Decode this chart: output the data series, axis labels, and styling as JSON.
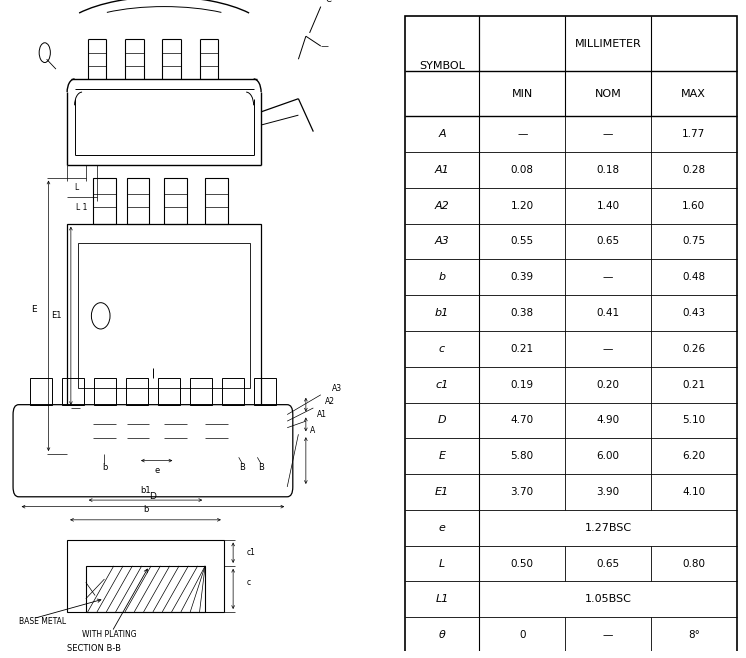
{
  "table_data": [
    [
      "SYMBOL",
      "MIN",
      "NOM",
      "MAX"
    ],
    [
      "A",
      "—",
      "—",
      "1.77"
    ],
    [
      "A1",
      "0.08",
      "0.18",
      "0.28"
    ],
    [
      "A2",
      "1.20",
      "1.40",
      "1.60"
    ],
    [
      "A3",
      "0.55",
      "0.65",
      "0.75"
    ],
    [
      "b",
      "0.39",
      "—",
      "0.48"
    ],
    [
      "b1",
      "0.38",
      "0.41",
      "0.43"
    ],
    [
      "c",
      "0.21",
      "—",
      "0.26"
    ],
    [
      "c1",
      "0.19",
      "0.20",
      "0.21"
    ],
    [
      "D",
      "4.70",
      "4.90",
      "5.10"
    ],
    [
      "E",
      "5.80",
      "6.00",
      "6.20"
    ],
    [
      "E1",
      "3.70",
      "3.90",
      "4.10"
    ],
    [
      "e",
      "1.27BSC",
      "",
      ""
    ],
    [
      "L",
      "0.50",
      "0.65",
      "0.80"
    ],
    [
      "L1",
      "1.05BSC",
      "",
      ""
    ],
    [
      "θ",
      "0",
      "—",
      "8°"
    ]
  ],
  "bg_color": "#ffffff",
  "line_color": "#000000",
  "text_color": "#000000"
}
